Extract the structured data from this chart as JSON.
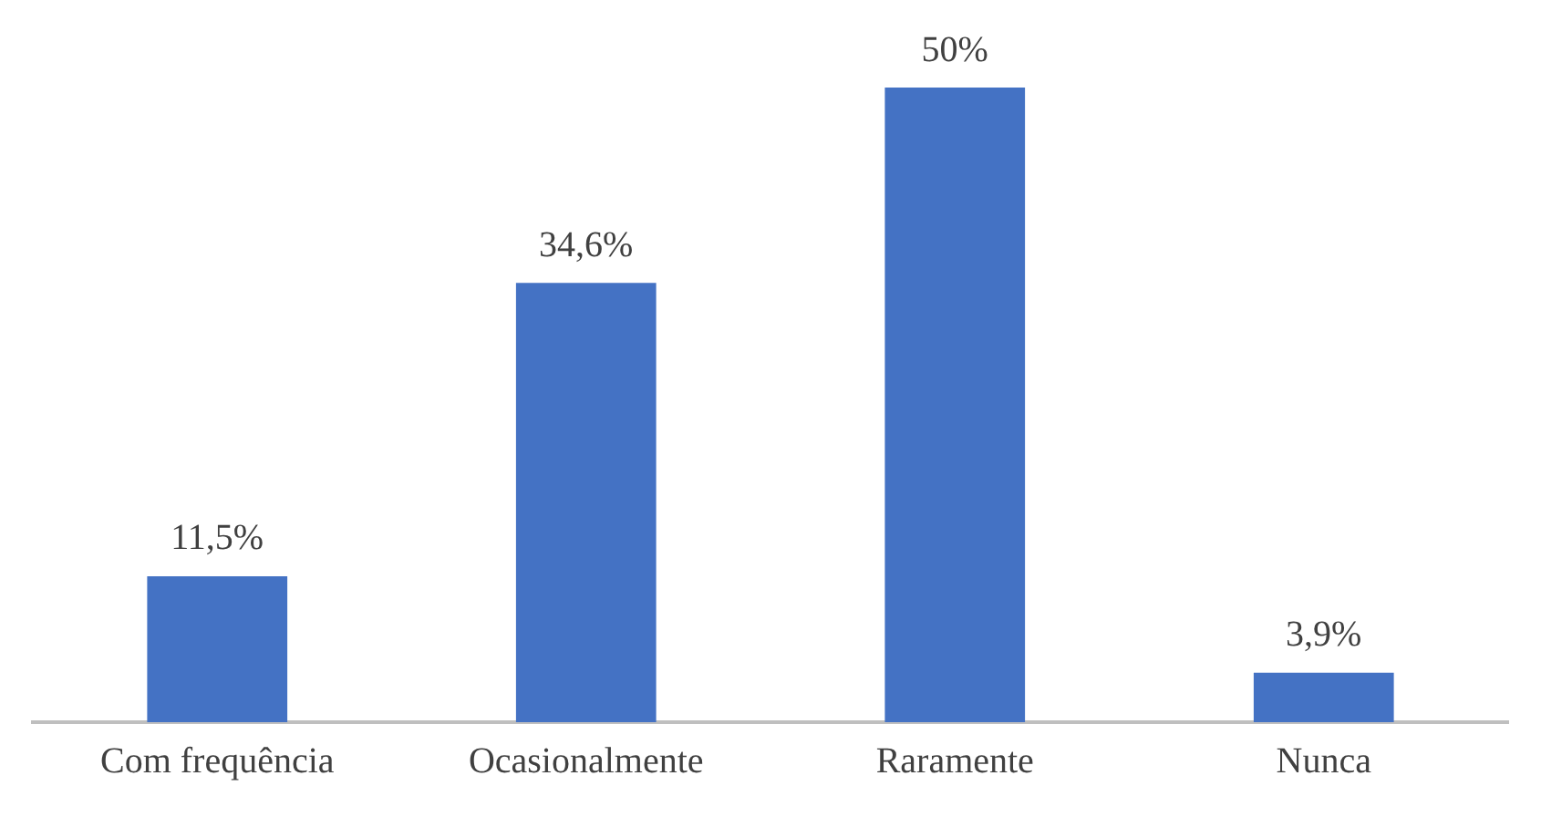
{
  "chart_data": {
    "type": "bar",
    "categories": [
      "Com frequência",
      "Ocasionalmente",
      "Raramente",
      "Nunca"
    ],
    "values": [
      11.5,
      34.6,
      50,
      3.9
    ],
    "value_labels": [
      "11,5%",
      "34,6%",
      "50%",
      "3,9%"
    ],
    "color": "#4472c4",
    "grid": false,
    "legend": false
  }
}
